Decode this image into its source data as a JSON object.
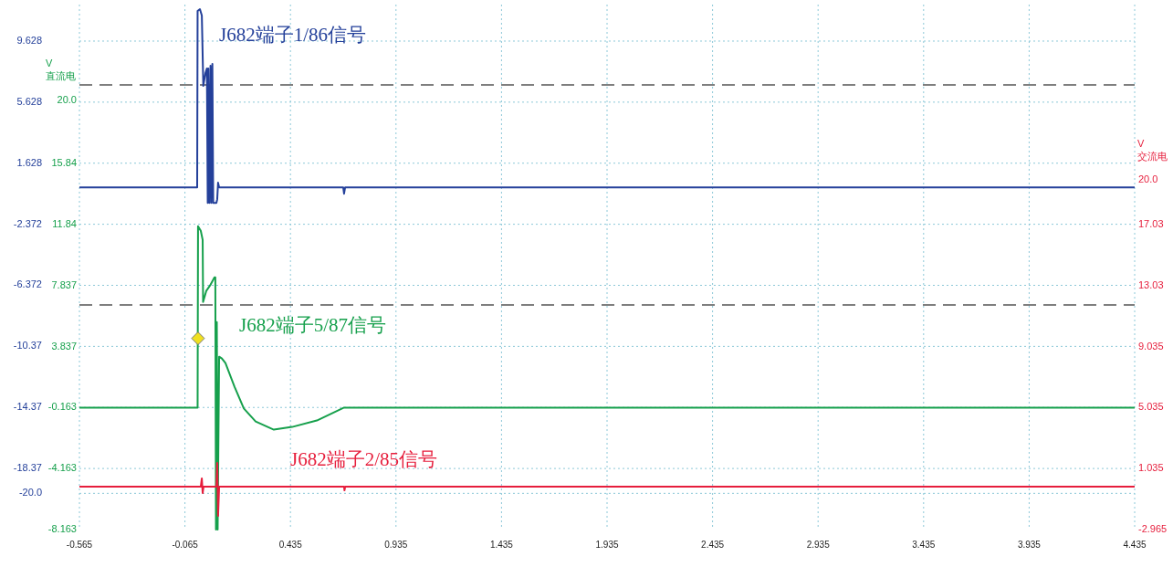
{
  "chart_data": {
    "type": "line",
    "xlim": [
      -0.565,
      4.435
    ],
    "xticks": [
      -0.565,
      -0.065,
      0.435,
      0.935,
      1.435,
      1.935,
      2.435,
      2.935,
      3.435,
      3.935,
      4.435
    ],
    "ylim": [
      -22.372,
      12.02
    ],
    "yticks": [
      9.628,
      5.628,
      1.628,
      -2.372,
      -6.372,
      {
        "value": -10.372,
        "label": "-10.37"
      },
      {
        "value": -14.372,
        "label": "-14.37"
      },
      {
        "value": -18.372,
        "label": "-18.37"
      },
      {
        "value": -20,
        "label": "-20.0"
      }
    ],
    "y2lim": [
      -8.163,
      26.28
    ],
    "y2ticks": [
      {
        "value": 20,
        "label": "20.0"
      },
      {
        "value": 15.837,
        "label": "15.84"
      },
      {
        "value": 11.837,
        "label": "11.84"
      },
      7.837,
      3.837,
      -0.163,
      -4.163,
      -8.163
    ],
    "y2label": "V\n直流电",
    "y3lim": [
      -2.965,
      31.48
    ],
    "y3ticks": [
      {
        "value": 20,
        "label": "20.0"
      },
      {
        "value": 17.035,
        "label": "17.03"
      },
      {
        "value": 13.035,
        "label": "13.03"
      },
      9.035,
      5.035,
      1.035,
      -2.965
    ],
    "y3label": "V\n交流电",
    "grid": true,
    "marker": "none",
    "line_style": "solid",
    "series": [
      {
        "color": "#24409a",
        "axis": "y",
        "x": [
          -0.565,
          -0.007,
          -0.005,
          0.006,
          0.015,
          0.022,
          0.032,
          0.039,
          0.043,
          0.046,
          0.051,
          0.056,
          0.06,
          0.065,
          0.069,
          0.084,
          0.088,
          0.092,
          0.097,
          0.685,
          0.689,
          0.694,
          4.435
        ],
        "values": [
          0.05,
          0.05,
          11.6,
          11.72,
          11.3,
          6.69,
          7.53,
          7.83,
          -0.97,
          7.83,
          -0.97,
          8.01,
          -0.97,
          8.13,
          -0.97,
          -0.97,
          -0.73,
          0.35,
          0.05,
          0.05,
          -0.37,
          0.05,
          0.05
        ]
      },
      {
        "color": "#16a04c",
        "axis": "y2",
        "x": [
          -0.565,
          -0.005,
          -0.003,
          0.01,
          0.019,
          0.021,
          0.036,
          0.054,
          0.075,
          0.079,
          0.082,
          0.086,
          0.09,
          0.097,
          0.11,
          0.127,
          0.17,
          0.214,
          0.27,
          0.356,
          0.443,
          0.56,
          0.689,
          4.435
        ],
        "values": [
          -0.16,
          -0.16,
          11.74,
          11.44,
          10.84,
          6.77,
          7.49,
          7.85,
          8.39,
          8.39,
          -8.16,
          5.45,
          -8.16,
          3.18,
          3.06,
          2.76,
          1.2,
          -0.22,
          -1.07,
          -1.61,
          -1.43,
          -1.01,
          -0.16,
          -0.16
        ]
      },
      {
        "color": "#e61e3c",
        "axis": "y3",
        "x": [
          -0.565,
          0.01,
          0.015,
          0.019,
          0.023,
          0.084,
          0.088,
          0.092,
          0.097,
          0.689,
          0.691,
          0.694,
          4.435
        ],
        "values": [
          -0.15,
          -0.15,
          0.39,
          -0.57,
          -0.15,
          -0.15,
          1.41,
          -2.07,
          -0.15,
          -0.15,
          -0.39,
          -0.15,
          -0.15
        ]
      },
      {
        "type": "scatter",
        "marker": "diamond",
        "color": "#f0e020",
        "axis": "y2",
        "x": [
          -0.003
        ],
        "values": [
          4.38
        ]
      }
    ],
    "ref_lines": [
      {
        "axis": "y",
        "value": 6.75,
        "color": "#555555",
        "line_style": "dashed"
      },
      {
        "axis": "y2",
        "value": 6.58,
        "color": "#555555",
        "line_style": "dashed"
      }
    ],
    "annotations": [
      "J682端子1/86信号",
      "J682端子5/87信号",
      "J682端子2/85信号"
    ]
  }
}
